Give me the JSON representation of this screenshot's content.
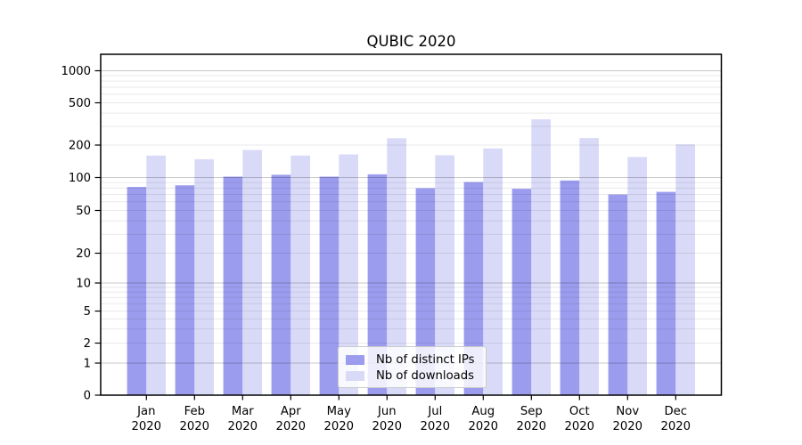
{
  "title": "QUBIC 2020",
  "chart_data": {
    "type": "bar",
    "categories": [
      "Jan",
      "Feb",
      "Mar",
      "Apr",
      "May",
      "Jun",
      "Jul",
      "Aug",
      "Sep",
      "Oct",
      "Nov",
      "Dec"
    ],
    "category_year": "2020",
    "series": [
      {
        "name": "Nb of distinct IPs",
        "color": "#9b9cee",
        "values": [
          82,
          85,
          102,
          106,
          102,
          107,
          80,
          91,
          79,
          94,
          70,
          74
        ]
      },
      {
        "name": "Nb of downloads",
        "color": "#d9daf7",
        "values": [
          160,
          148,
          180,
          160,
          164,
          232,
          161,
          186,
          350,
          233,
          155,
          203
        ]
      }
    ],
    "title": "QUBIC 2020",
    "xlabel": "",
    "ylabel": "",
    "yscale": "symlog",
    "yticks": [
      0,
      1,
      2,
      5,
      10,
      20,
      50,
      100,
      200,
      500,
      1000
    ],
    "ylim": [
      0,
      1400
    ],
    "grid": "horizontal",
    "legend_position": "lower-center",
    "colors": {
      "major_grid": "rgba(0,0,0,0.22)",
      "minor_grid": "rgba(0,0,0,0.085)",
      "axis": "#000000",
      "tick_label": "#000000"
    }
  }
}
